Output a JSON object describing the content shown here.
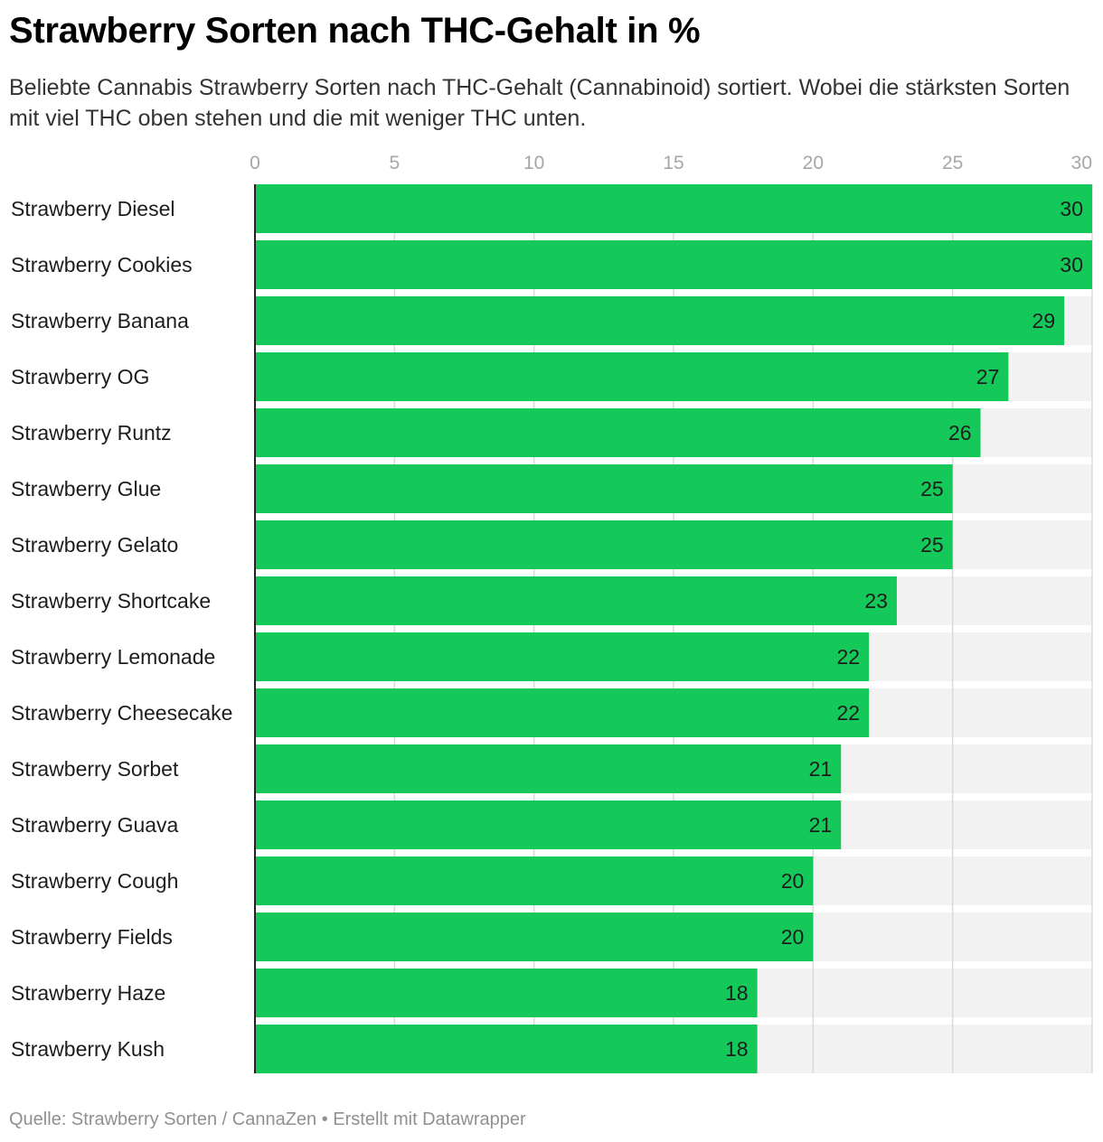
{
  "title": "Strawberry Sorten nach THC-Gehalt in %",
  "subtitle": "Beliebte Cannabis Strawberry Sorten nach THC-Gehalt (Cannabinoid) sortiert. Wobei die stärksten Sorten mit viel THC oben stehen und die mit weniger THC unten.",
  "footer": "Quelle: Strawberry Sorten / CannaZen • Erstellt mit Datawrapper",
  "colors": {
    "bar": "#14c95a",
    "track": "#f2f2f2",
    "grid": "#d9d9d9",
    "tick_label": "#a6a6a6",
    "axis": "#222222"
  },
  "chart_data": {
    "type": "bar",
    "orientation": "horizontal",
    "categories": [
      "Strawberry Diesel",
      "Strawberry Cookies",
      "Strawberry Banana",
      "Strawberry OG",
      "Strawberry Runtz",
      "Strawberry Glue",
      "Strawberry Gelato",
      "Strawberry Shortcake",
      "Strawberry Lemonade",
      "Strawberry Cheesecake",
      "Strawberry Sorbet",
      "Strawberry Guava",
      "Strawberry Cough",
      "Strawberry Fields",
      "Strawberry Haze",
      "Strawberry Kush"
    ],
    "values": [
      30,
      30,
      29,
      27,
      26,
      25,
      25,
      23,
      22,
      22,
      21,
      21,
      20,
      20,
      18,
      18
    ],
    "xlim": [
      0,
      30
    ],
    "xticks": [
      0,
      5,
      10,
      15,
      20,
      25,
      30
    ],
    "xtick_position": "top",
    "data_labels": true,
    "grid": true,
    "xlabel": "",
    "ylabel": ""
  }
}
